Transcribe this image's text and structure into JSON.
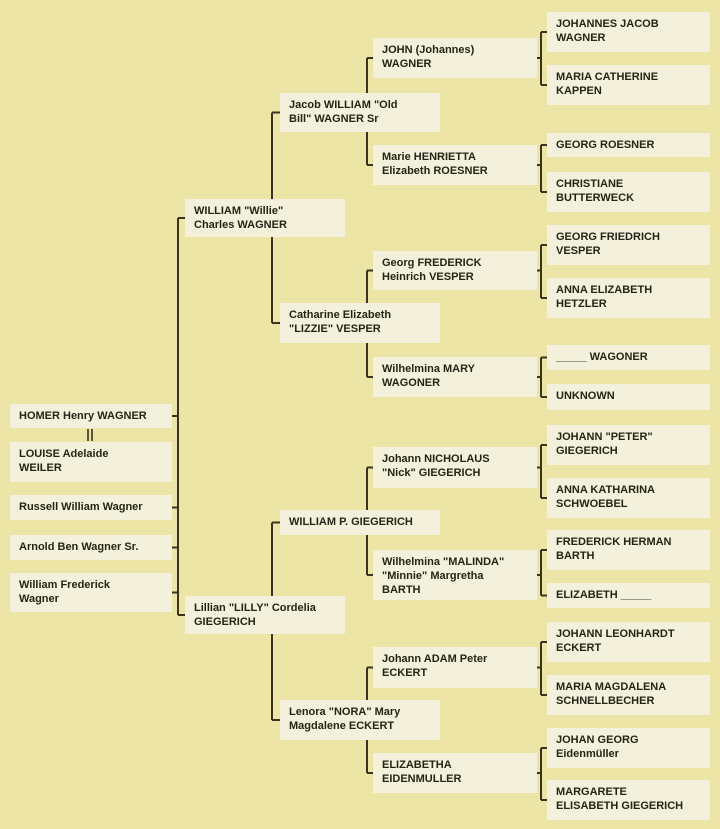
{
  "colors": {
    "background": "#ede5a6",
    "box": "#f3f0dc",
    "line": "#3a3320",
    "text": "#262416"
  },
  "marriage_symbol": "||",
  "siblings_and_spouse": [
    "HOMER Henry WAGNER",
    "LOUISE Adelaide\nWEILER",
    "Russell William Wagner",
    "Arnold Ben Wagner Sr.",
    "William Frederick\nWagner"
  ],
  "parents": [
    "WILLIAM \"Willie\"\nCharles WAGNER",
    "Lillian \"LILLY\" Cordelia\nGIEGERICH"
  ],
  "grandparents": [
    "Jacob WILLIAM \"Old\nBill\" WAGNER Sr",
    "Catharine Elizabeth\n\"LIZZIE\" VESPER",
    "WILLIAM P. GIEGERICH",
    "Lenora \"NORA\" Mary\nMagdalene ECKERT"
  ],
  "great_grandparents": [
    "JOHN (Johannes)\nWAGNER",
    "Marie HENRIETTA\nElizabeth ROESNER",
    "Georg FREDERICK\nHeinrich VESPER",
    "Wilhelmina MARY\nWAGONER",
    "Johann NICHOLAUS\n\"Nick\" GIEGERICH",
    "Wilhelmina \"MALINDA\"\n\"Minnie\" Margretha\nBARTH",
    "Johann ADAM Peter\nECKERT",
    "ELIZABETHA\nEIDENMULLER"
  ],
  "great_great_grandparents": [
    "JOHANNES JACOB\nWAGNER",
    "MARIA CATHERINE\nKAPPEN",
    "GEORG ROESNER",
    "CHRISTIANE\nBUTTERWECK",
    "GEORG FRIEDRICH\nVESPER",
    "ANNA ELIZABETH\nHETZLER",
    "_____ WAGONER",
    "UNKNOWN",
    "JOHANN \"PETER\"\nGIEGERICH",
    "ANNA KATHARINA\nSCHWOEBEL",
    "FREDERICK HERMAN\nBARTH",
    "ELIZABETH _____",
    "JOHANN LEONHARDT\nECKERT",
    "MARIA MAGDALENA\nSCHNELLBECHER",
    "JOHAN GEORG\nEidenmüller",
    "MARGARETE\nELISABETH GIEGERICH"
  ]
}
